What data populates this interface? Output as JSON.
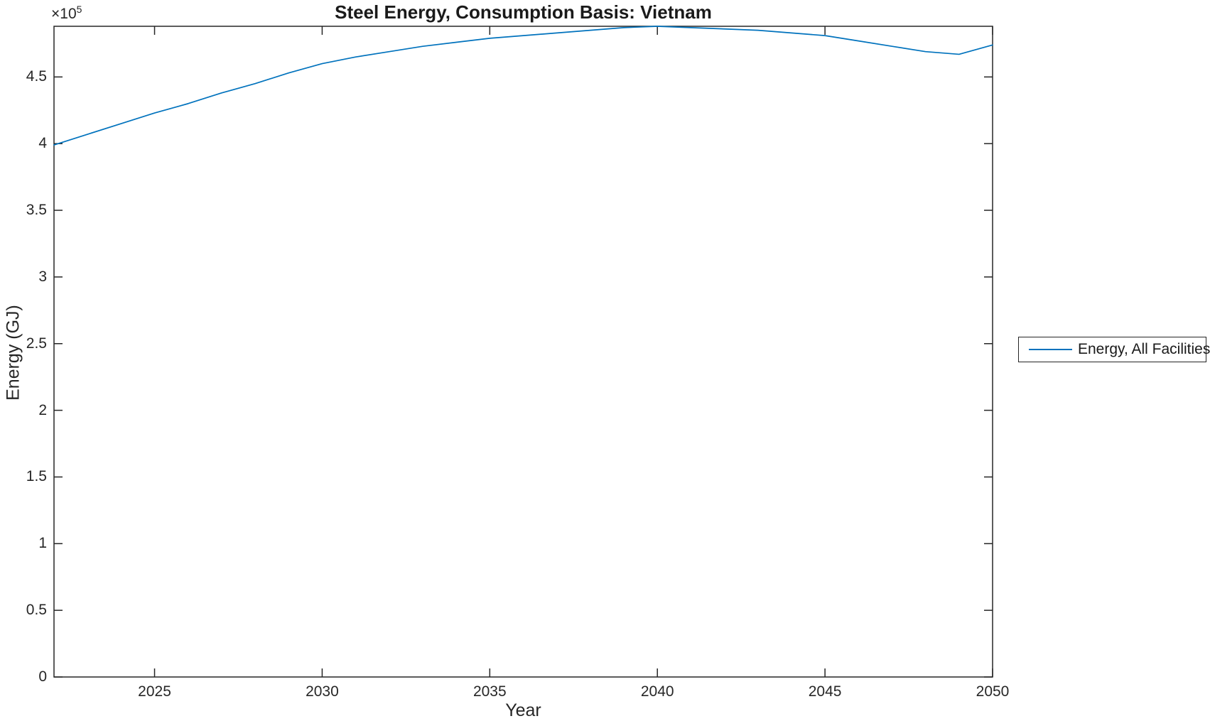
{
  "figure": {
    "title": "Steel Energy, Consumption Basis: Vietnam",
    "xlabel": "Year",
    "ylabel": "Energy (GJ)",
    "y_exponent_base": "×10",
    "y_exponent_power": "5",
    "legend": {
      "entries": [
        {
          "label": "Energy, All Facilities",
          "color": "#0072BD"
        }
      ]
    },
    "colors": {
      "axis": "#262626",
      "series_line": "#0072BD",
      "background": "#ffffff",
      "title_text": "#1a1a1a",
      "tick_text": "#262626"
    }
  },
  "chart_data": {
    "type": "line",
    "title": "Steel Energy, Consumption Basis: Vietnam",
    "xlabel": "Year",
    "ylabel": "Energy (GJ)",
    "x": [
      2022,
      2023,
      2024,
      2025,
      2026,
      2027,
      2028,
      2029,
      2030,
      2031,
      2032,
      2033,
      2034,
      2035,
      2036,
      2037,
      2038,
      2039,
      2040,
      2041,
      2042,
      2043,
      2044,
      2045,
      2046,
      2047,
      2048,
      2049,
      2050
    ],
    "series": [
      {
        "name": "Energy, All Facilities",
        "values": [
          399000,
          407000,
          415000,
          423000,
          430000,
          438000,
          445000,
          453000,
          460000,
          465000,
          469000,
          473000,
          476000,
          479000,
          481000,
          483000,
          485000,
          487000,
          488000,
          487000,
          486000,
          485000,
          483000,
          481000,
          477000,
          473000,
          469000,
          467000,
          474000
        ]
      }
    ],
    "xlim": [
      2022,
      2050
    ],
    "ylim": [
      0,
      488000
    ],
    "x_ticks": [
      2025,
      2030,
      2035,
      2040,
      2045,
      2050
    ],
    "y_ticks": [
      0,
      50000,
      100000,
      150000,
      200000,
      250000,
      300000,
      350000,
      400000,
      450000
    ],
    "y_tick_labels": [
      "0",
      "0.5",
      "1",
      "1.5",
      "2",
      "2.5",
      "3",
      "3.5",
      "4",
      "4.5"
    ],
    "y_axis_exponent": 5,
    "grid": false,
    "legend_position": "right-outside"
  }
}
